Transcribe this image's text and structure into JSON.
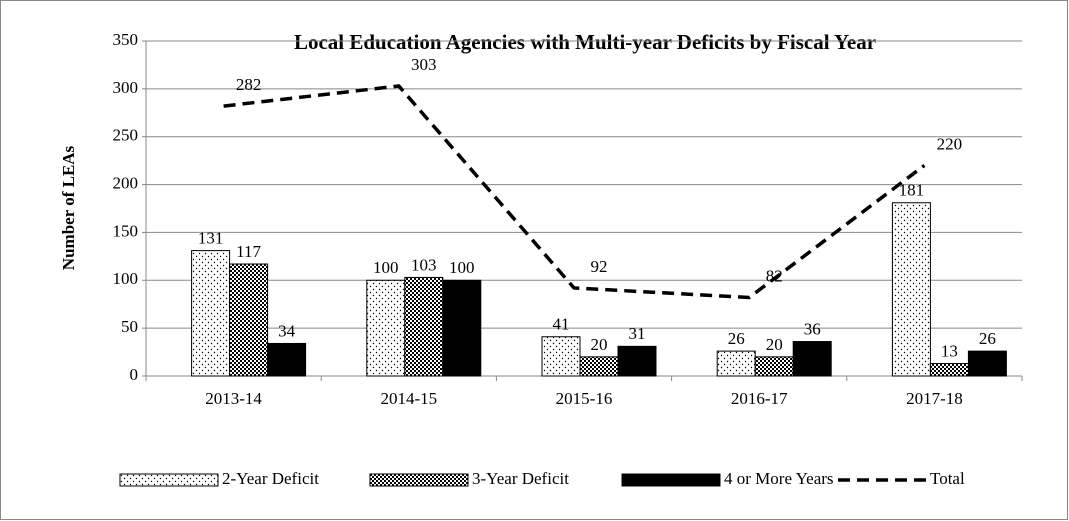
{
  "chart_data": {
    "type": "bar",
    "title": "Local Education Agencies with Multi-year Deficits by Fiscal Year",
    "y_label": "Number of LEAs",
    "categories": [
      "2013-14",
      "2014-15",
      "2015-16",
      "2016-17",
      "2017-18"
    ],
    "series": [
      {
        "name": "2-Year Deficit",
        "color": "#000000",
        "pattern": "dots",
        "type": "bar",
        "values": [
          131,
          100,
          41,
          26,
          181
        ]
      },
      {
        "name": "3-Year Deficit",
        "color": "#000000",
        "pattern": "checker",
        "type": "bar",
        "values": [
          117,
          103,
          20,
          20,
          13
        ]
      },
      {
        "name": "4 or More Years",
        "color": "#000000",
        "pattern": "solid",
        "type": "bar",
        "values": [
          34,
          100,
          31,
          36,
          26
        ]
      },
      {
        "name": "Total",
        "color": "#000000",
        "type": "line",
        "dashed": true,
        "values": [
          282,
          303,
          92,
          82,
          220
        ]
      }
    ],
    "ylim": [
      0,
      350
    ],
    "yticks": [
      0,
      50,
      100,
      150,
      200,
      250,
      300,
      350
    ],
    "grid": true,
    "legend": "bottom"
  }
}
